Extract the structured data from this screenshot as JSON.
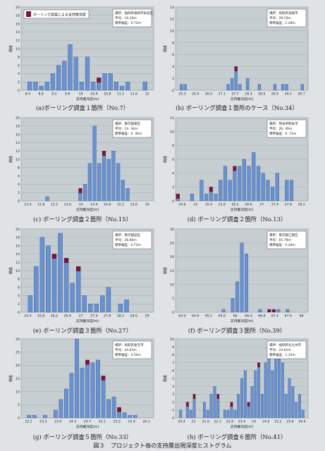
{
  "colors": {
    "bar": "#6a91cf",
    "bar_edge": "#3f5f9a",
    "top": "#7a1434",
    "plot_bg": "#c7ced1",
    "grid": "#a7b0b4"
  },
  "figure_caption": "図３　プロジェクト毎の支持層出現深度ヒストグラム",
  "legend_label": "ボーリング調査による支持層深度",
  "chart_data": [
    {
      "type": "bar",
      "caption": "(a)ボーリング調査１箇所（No.7）",
      "xlabel": "支持層深度(m)",
      "ylabel": "頻度",
      "ylim": [
        0,
        20
      ],
      "yticks": [
        "0",
        "2",
        "4",
        "6",
        "8",
        "10",
        "12",
        "14",
        "16",
        "18",
        "20"
      ],
      "xticks": [
        "8.4",
        "8.8",
        "9.2",
        "9.6",
        "10",
        "10.4",
        "10.8",
        "11.2",
        "11.6",
        "12"
      ],
      "info": [
        "場所：福岡県福岡市早良区",
        "平均：10.16m",
        "標準偏差：0.72m"
      ],
      "values": [
        0,
        2,
        2,
        1,
        2,
        4,
        6,
        7,
        11,
        8,
        2,
        8,
        2,
        3,
        4,
        4,
        2,
        1,
        2,
        0,
        0,
        2,
        0
      ],
      "highlight": [
        13
      ]
    },
    {
      "type": "bar",
      "caption": "(b) ボーリング調査１箇所のケース（No.34）",
      "xlabel": "支持層深度(m)",
      "ylabel": "頻度",
      "ylim": [
        0,
        14
      ],
      "yticks": [
        "0",
        "2",
        "4",
        "6",
        "8",
        "10",
        "12",
        "14"
      ],
      "xticks": [
        "25.3",
        "25.9",
        "26.5",
        "27.1",
        "27.7",
        "28.3",
        "28.9",
        "29.5",
        "30.1",
        "30.7"
      ],
      "info": [
        "場所：鳥取県鳥取市",
        "平均：28.10m",
        "標準偏差：1.28m"
      ],
      "values": [
        0,
        1,
        1,
        0,
        0,
        0,
        0,
        0,
        0,
        0,
        0,
        0,
        0,
        1,
        2,
        4,
        1,
        0,
        2,
        0,
        0,
        1,
        0,
        0,
        0,
        1,
        0,
        1,
        1,
        0,
        0,
        0,
        1,
        0
      ],
      "highlight": [
        15
      ]
    },
    {
      "type": "bar",
      "caption": "(c) ボーリング調査２箇所（No.15）",
      "xlabel": "支持層深度(m)",
      "ylabel": "頻度",
      "ylim": [
        0,
        20
      ],
      "yticks": [
        "0",
        "2",
        "4",
        "6",
        "8",
        "10",
        "12",
        "14",
        "16",
        "18",
        "20"
      ],
      "xticks": [
        "12.4",
        "12.8",
        "13.2",
        "13.6",
        "14",
        "14.4",
        "14.8",
        "15.2",
        "15.6",
        "16"
      ],
      "info": [
        "場所：東京都東区",
        "平均：14. 34m",
        "標準偏差：0. 46m"
      ],
      "values": [
        0,
        0,
        0,
        0,
        0,
        1,
        0,
        0,
        0,
        0,
        0,
        0,
        3,
        4,
        9,
        18,
        9,
        12,
        10,
        12,
        9,
        5,
        3,
        0,
        0,
        0,
        0,
        0
      ],
      "highlight": [
        12,
        17
      ]
    },
    {
      "type": "bar",
      "caption": "(d) ボーリング調査２箇所（No.13）",
      "xlabel": "支持層深度(m)",
      "ylabel": "頻度",
      "ylim": [
        0,
        12
      ],
      "yticks": [
        "0",
        "2",
        "4",
        "6",
        "8",
        "10",
        "12"
      ],
      "xticks": [
        "24.6",
        "25",
        "25.4",
        "25.8",
        "26.2",
        "26.6",
        "27",
        "27.4",
        "27.8",
        "28.2"
      ],
      "info": [
        "場所：熊本県熊本市",
        "平均：26. 30m",
        "標準偏差：0. 72m"
      ],
      "values": [
        1,
        0,
        0,
        1,
        0,
        3,
        1,
        2,
        1,
        3,
        5,
        3,
        5,
        5,
        6,
        5,
        7,
        5,
        4,
        3,
        2,
        4,
        0,
        3,
        3,
        0,
        0,
        0
      ],
      "highlight": [
        0,
        7,
        12
      ]
    },
    {
      "type": "bar",
      "caption": "(e) ボーリング調査３箇所（No.27）",
      "xlabel": "支持層深度(m)",
      "ylabel": "頻度",
      "ylim": [
        0,
        20
      ],
      "yticks": [
        "0",
        "2",
        "4",
        "6",
        "8",
        "10",
        "12",
        "14",
        "16",
        "18",
        "20"
      ],
      "xticks": [
        "25.4",
        "25.8",
        "26.2",
        "26.6",
        "27",
        "27.4",
        "27.8",
        "28.2",
        "28.6",
        "29"
      ],
      "info": [
        "場所：東京都品区",
        "平均：26.86m",
        "標準偏差：0.72m"
      ],
      "values": [
        0,
        4,
        11,
        18,
        16,
        14,
        19,
        13,
        7,
        11,
        4,
        2,
        2,
        4,
        6,
        0,
        2,
        3,
        0,
        0,
        0,
        0
      ],
      "highlight": [
        5,
        7,
        9
      ]
    },
    {
      "type": "bar",
      "caption": "(f) ボーリング調査３箇所（No.39）",
      "xlabel": "支持層深度(m)",
      "ylabel": "頻度",
      "ylim": [
        0,
        30
      ],
      "yticks": [
        "0",
        "5",
        "10",
        "15",
        "20",
        "25",
        "30"
      ],
      "xticks": [
        "64.4",
        "64.8",
        "65.2",
        "65.6",
        "66",
        "66.4",
        "66.8",
        "67.2",
        "67.6",
        "68"
      ],
      "info": [
        "場所：東京都江東区",
        "平均：65.79m",
        "標準偏差：0.28m"
      ],
      "values": [
        0,
        0,
        0,
        0,
        0,
        0,
        0,
        0,
        0,
        0,
        1,
        0,
        5,
        11,
        25,
        21,
        0,
        0,
        1,
        0,
        1,
        1,
        1,
        0,
        1,
        0,
        0,
        0,
        0
      ],
      "highlight": [
        20,
        21
      ]
    },
    {
      "type": "bar",
      "caption": "(g) ボーリング調査５箇所（No.33）",
      "xlabel": "支持層深度(m)",
      "ylabel": "頻度",
      "ylim": [
        0,
        30
      ],
      "yticks": [
        "0",
        "5",
        "10",
        "15",
        "20",
        "25",
        "30"
      ],
      "xticks": [
        "23.1",
        "23.5",
        "23.9",
        "24.3",
        "24.7",
        "25.1",
        "25.5",
        "25.9",
        "26.3"
      ],
      "info": [
        "場所：鳥取県倉吉市",
        "平均：24.63m",
        "標準偏差：0.50m"
      ],
      "values": [
        0,
        1,
        1,
        0,
        1,
        0,
        3,
        7,
        11,
        17,
        30,
        19,
        22,
        21,
        22,
        16,
        7,
        8,
        4,
        2,
        1,
        1,
        0,
        0,
        0
      ],
      "highlight": [
        12,
        15,
        18
      ]
    },
    {
      "type": "bar",
      "caption": "(h) ボーリング調査６箇所（No.41）",
      "xlabel": "支持層深度(m)",
      "ylabel": "頻度",
      "ylim": [
        0,
        10
      ],
      "yticks": [
        "0",
        "1",
        "2",
        "3",
        "4",
        "5",
        "6",
        "7",
        "8",
        "9",
        "10"
      ],
      "xticks": [
        "20.4",
        "21",
        "21.6",
        "22.2",
        "22.8",
        "23.4",
        "24",
        "24.6",
        "25.2",
        "25.8",
        "26.4"
      ],
      "info": [
        "場所：福岡県北九州市",
        "平均：24.61m",
        "標準偏差：1.35m"
      ],
      "values": [
        0,
        1,
        0,
        2,
        1,
        3,
        0,
        0,
        2,
        1,
        3,
        4,
        3,
        0,
        1,
        1,
        2,
        1,
        3,
        5,
        6,
        2,
        4,
        6,
        7,
        3,
        7,
        9,
        6,
        9,
        8,
        7,
        3,
        5,
        4,
        2,
        3,
        1,
        0
      ],
      "highlight": [
        3,
        5,
        12,
        16,
        21,
        24,
        27,
        29
      ]
    }
  ]
}
